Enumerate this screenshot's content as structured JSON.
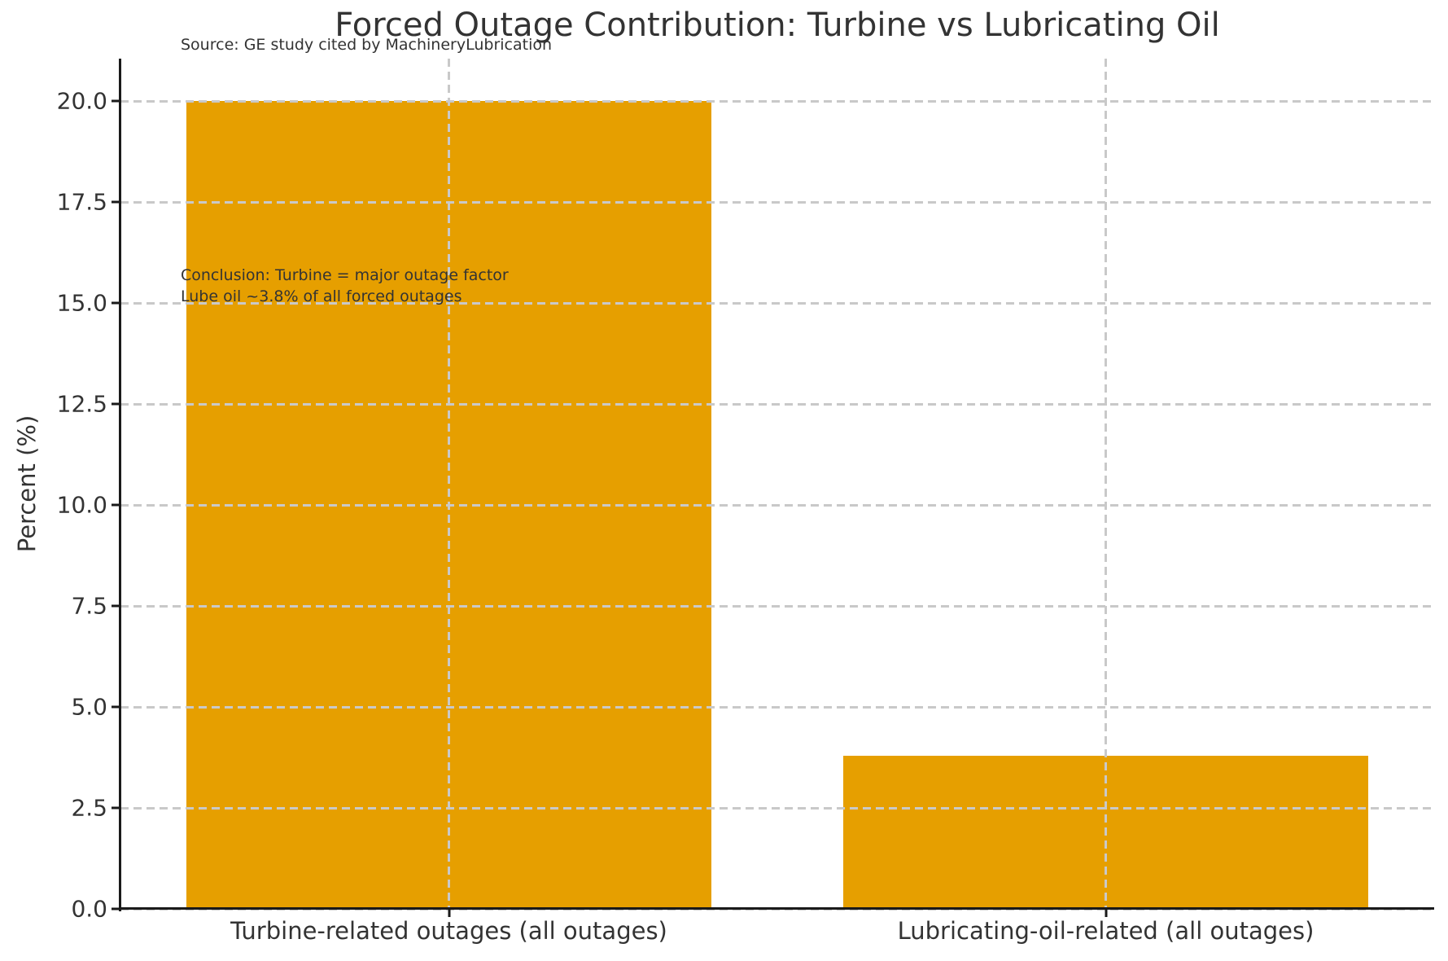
{
  "chart": {
    "title": "Forced Outage Contribution: Turbine vs Lubricating Oil",
    "source_note": "Source: GE study cited by MachineryLubrication",
    "ylabel": "Percent (%)",
    "annotation_line1": "Conclusion: Turbine = major outage factor",
    "annotation_line2": "Lube oil ~3.8% of all forced outages"
  },
  "chart_data": {
    "type": "bar",
    "title": "Forced Outage Contribution: Turbine vs Lubricating Oil",
    "categories": [
      "Turbine-related outages (all outages)",
      "Lubricating-oil-related (all outages)"
    ],
    "values": [
      20.0,
      3.8
    ],
    "xlabel": "",
    "ylabel": "Percent (%)",
    "ylim": [
      0,
      21.05
    ],
    "yticks": [
      0.0,
      2.5,
      5.0,
      7.5,
      10.0,
      12.5,
      15.0,
      17.5,
      20.0
    ],
    "ytick_labels": [
      "0.0",
      "2.5",
      "5.0",
      "7.5",
      "10.0",
      "12.5",
      "15.0",
      "17.5",
      "20.0"
    ],
    "bar_width_fraction": 0.8,
    "grid": "dashed gridlines on both axes, drawn over bars",
    "legend_position": "none",
    "bar_color": "#E69F00",
    "annotation": "Conclusion: Turbine = major outage factor\nLube oil ~3.8% of all forced outages",
    "source_note": "Source: GE study cited by MachineryLubrication"
  },
  "colors": {
    "bar": "#E69F00",
    "grid": "#c9c9c9",
    "axis": "#1a1a1a",
    "text": "#333333",
    "background": "#ffffff"
  }
}
